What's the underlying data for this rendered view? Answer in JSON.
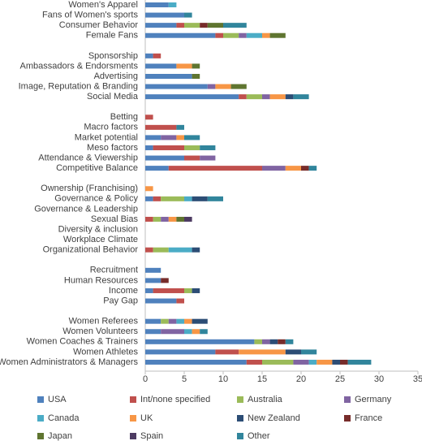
{
  "chart_data": {
    "type": "stacked-bar-horizontal",
    "categories": [
      "Women's Apparel",
      "Fans of Women's sports",
      "Consumer Behavior",
      "Female Fans",
      null,
      "Sponsorship",
      "Ambassadors & Endorsments",
      "Advertising",
      "Image, Reputation & Branding",
      "Social Media",
      null,
      "Betting",
      "Macro factors",
      "Market potential",
      "Meso factors",
      "Attendance & Viewership",
      "Competitive Balance",
      null,
      "Ownership (Franchising)",
      "Governance & Policy",
      "Governance & Leadership",
      "Sexual Bias",
      "Diversity & inclusion",
      "Workplace Climate",
      "Organizational Behavior",
      null,
      "Recruitment",
      "Human Resources",
      "Income",
      "Pay Gap",
      null,
      "Women Referees",
      "Women Volunteers",
      "Women Coaches & Trainers",
      "Women Athletes",
      "Women Administrators & Managers"
    ],
    "series": [
      {
        "name": "USA",
        "color": "#4f81bd",
        "values": [
          3,
          5,
          4,
          9,
          null,
          1,
          4,
          6,
          8,
          12,
          null,
          0,
          0,
          2,
          1,
          5,
          3,
          null,
          0,
          1,
          0,
          0,
          0,
          0,
          0,
          null,
          2,
          2,
          1,
          4,
          null,
          2,
          2,
          14,
          9,
          13
        ]
      },
      {
        "name": "Int/none specified",
        "color": "#c0504d",
        "values": [
          0,
          0,
          1,
          1,
          null,
          1,
          0,
          0,
          0,
          1,
          null,
          1,
          4,
          0,
          4,
          2,
          12,
          null,
          0,
          1,
          0,
          1,
          0,
          0,
          1,
          null,
          0,
          0,
          4,
          1,
          null,
          0,
          0,
          0,
          3,
          2
        ]
      },
      {
        "name": "Australia",
        "color": "#9bbb59",
        "values": [
          0,
          0,
          2,
          2,
          null,
          0,
          0,
          0,
          0,
          2,
          null,
          0,
          0,
          0,
          2,
          0,
          0,
          null,
          0,
          3,
          0,
          1,
          0,
          0,
          2,
          null,
          0,
          0,
          1,
          0,
          null,
          1,
          0,
          1,
          0,
          4
        ]
      },
      {
        "name": "Germany",
        "color": "#8064a2",
        "values": [
          0,
          0,
          0,
          1,
          null,
          0,
          0,
          0,
          1,
          1,
          null,
          0,
          0,
          2,
          0,
          2,
          3,
          null,
          0,
          0,
          0,
          1,
          0,
          0,
          0,
          null,
          0,
          0,
          0,
          0,
          null,
          1,
          3,
          1,
          0,
          2
        ]
      },
      {
        "name": "Canada",
        "color": "#4bacc6",
        "values": [
          1,
          0,
          0,
          2,
          null,
          0,
          0,
          0,
          0,
          0,
          null,
          0,
          0,
          0,
          0,
          0,
          0,
          null,
          0,
          1,
          0,
          0,
          0,
          0,
          3,
          null,
          0,
          0,
          0,
          0,
          null,
          1,
          1,
          0,
          0,
          1
        ]
      },
      {
        "name": "UK",
        "color": "#f79646",
        "values": [
          0,
          0,
          0,
          1,
          null,
          0,
          2,
          0,
          2,
          2,
          null,
          0,
          0,
          1,
          0,
          0,
          2,
          null,
          1,
          0,
          0,
          1,
          0,
          0,
          0,
          null,
          0,
          0,
          0,
          0,
          null,
          1,
          1,
          0,
          6,
          2
        ]
      },
      {
        "name": "New Zealand",
        "color": "#2c4d75",
        "values": [
          0,
          0,
          0,
          0,
          null,
          0,
          0,
          0,
          0,
          1,
          null,
          0,
          0,
          0,
          0,
          0,
          0,
          null,
          0,
          2,
          0,
          0,
          0,
          0,
          1,
          null,
          0,
          0,
          1,
          0,
          null,
          2,
          0,
          1,
          2,
          1
        ]
      },
      {
        "name": "France",
        "color": "#772c2a",
        "values": [
          0,
          0,
          1,
          0,
          null,
          0,
          0,
          0,
          0,
          0,
          null,
          0,
          0,
          0,
          0,
          0,
          1,
          null,
          0,
          0,
          0,
          0,
          0,
          0,
          0,
          null,
          0,
          1,
          0,
          0,
          null,
          0,
          0,
          1,
          0,
          1
        ]
      },
      {
        "name": "Japan",
        "color": "#5f7530",
        "values": [
          0,
          0,
          2,
          2,
          null,
          0,
          1,
          1,
          2,
          0,
          null,
          0,
          0,
          0,
          0,
          0,
          0,
          null,
          0,
          0,
          0,
          1,
          0,
          0,
          0,
          null,
          0,
          0,
          0,
          0,
          null,
          0,
          0,
          0,
          0,
          0
        ]
      },
      {
        "name": "Spain",
        "color": "#4d3b62",
        "values": [
          0,
          0,
          0,
          0,
          null,
          0,
          0,
          0,
          0,
          0,
          null,
          0,
          0,
          0,
          0,
          0,
          0,
          null,
          0,
          0,
          0,
          1,
          0,
          0,
          0,
          null,
          0,
          0,
          0,
          0,
          null,
          0,
          0,
          0,
          0,
          0
        ]
      },
      {
        "name": "Other",
        "color": "#31859c",
        "values": [
          0,
          1,
          3,
          0,
          null,
          0,
          0,
          0,
          0,
          2,
          null,
          0,
          1,
          2,
          2,
          0,
          1,
          null,
          0,
          2,
          0,
          0,
          0,
          0,
          0,
          null,
          0,
          0,
          0,
          0,
          null,
          0,
          1,
          1,
          2,
          3
        ]
      }
    ],
    "xlim": [
      0,
      35
    ],
    "xticks": [
      0,
      5,
      10,
      15,
      20,
      25,
      30,
      35
    ],
    "grid": false,
    "legend": "bottom"
  }
}
